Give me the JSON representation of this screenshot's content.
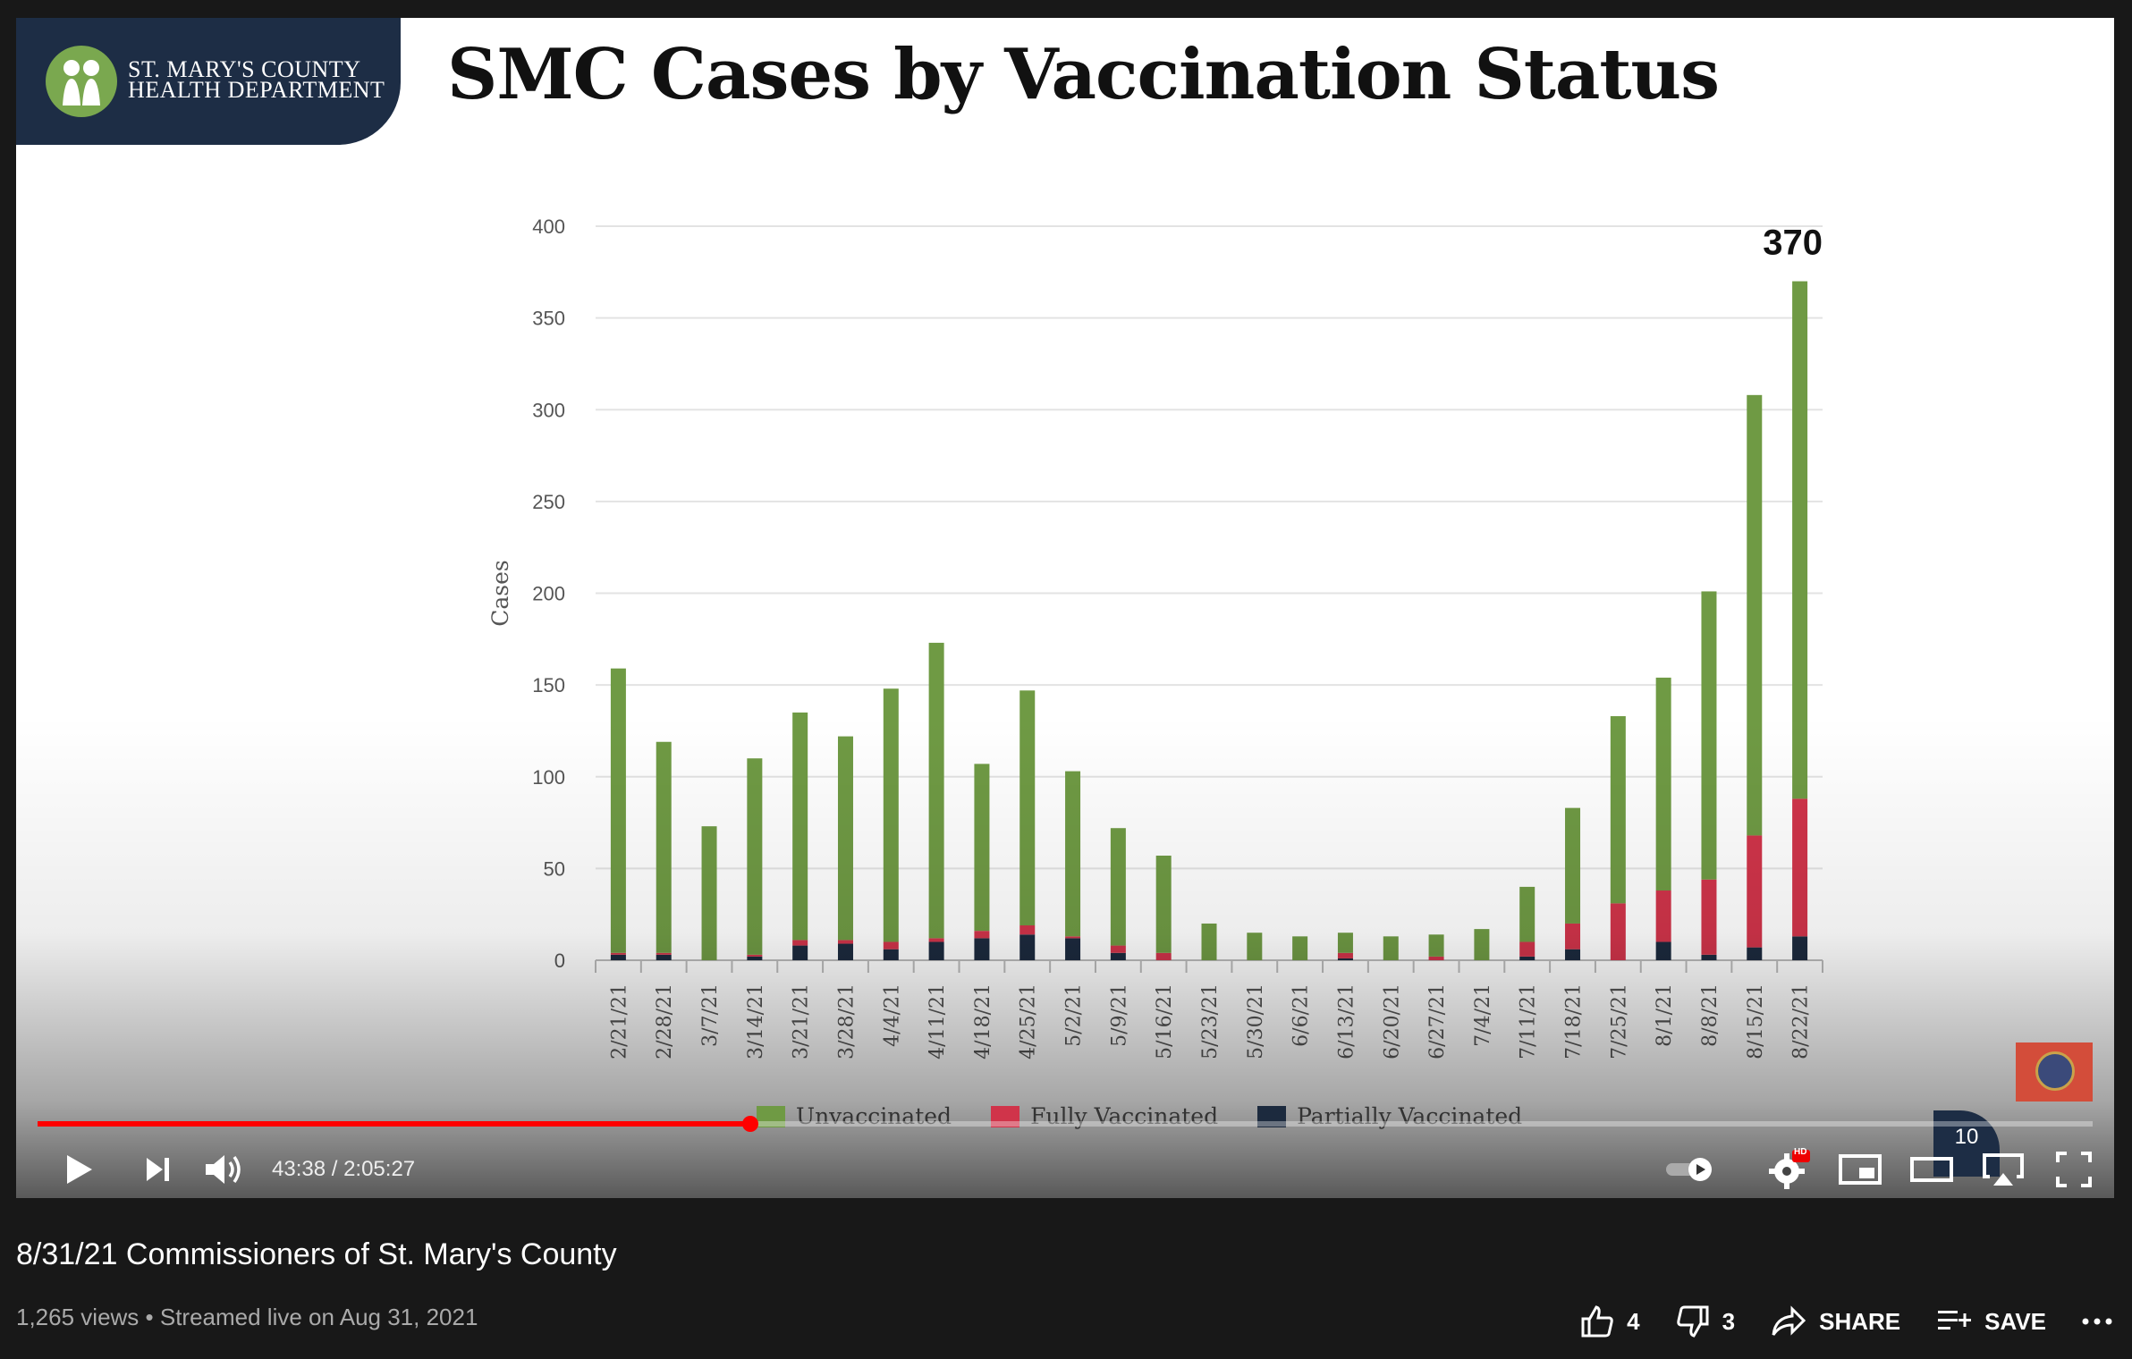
{
  "slide": {
    "org_line1": "ST. MARY'S COUNTY",
    "org_line2": "HEALTH DEPARTMENT",
    "title": "SMC Cases by Vaccination Status",
    "page_number": "10"
  },
  "chart_data": {
    "type": "bar",
    "stacked": true,
    "title": "",
    "xlabel": "",
    "ylabel": "Cases",
    "ylim": [
      0,
      400
    ],
    "yticks": [
      0,
      50,
      100,
      150,
      200,
      250,
      300,
      350,
      400
    ],
    "grid": true,
    "legend_position": "bottom",
    "annotation": "370",
    "categories": [
      "2/21/21",
      "2/28/21",
      "3/7/21",
      "3/14/21",
      "3/21/21",
      "3/28/21",
      "4/4/21",
      "4/11/21",
      "4/18/21",
      "4/25/21",
      "5/2/21",
      "5/9/21",
      "5/16/21",
      "5/23/21",
      "5/30/21",
      "6/6/21",
      "6/13/21",
      "6/20/21",
      "6/27/21",
      "7/4/21",
      "7/11/21",
      "7/18/21",
      "7/25/21",
      "8/1/21",
      "8/8/21",
      "8/15/21",
      "8/22/21"
    ],
    "series": [
      {
        "name": "Partially Vaccinated",
        "color": "#1c2a3e",
        "values": [
          3,
          3,
          0,
          2,
          8,
          9,
          6,
          10,
          12,
          14,
          12,
          4,
          0,
          0,
          0,
          0,
          1,
          0,
          0,
          0,
          2,
          6,
          0,
          10,
          3,
          7,
          13
        ]
      },
      {
        "name": "Fully Vaccinated",
        "color": "#d0344a",
        "values": [
          1,
          1,
          0,
          1,
          3,
          2,
          4,
          2,
          4,
          5,
          1,
          4,
          4,
          0,
          0,
          0,
          3,
          0,
          2,
          0,
          8,
          14,
          31,
          28,
          41,
          61,
          75
        ]
      },
      {
        "name": "Unvaccinated",
        "color": "#6f9a44",
        "values": [
          155,
          115,
          73,
          107,
          124,
          111,
          138,
          161,
          91,
          128,
          90,
          64,
          53,
          20,
          15,
          13,
          11,
          13,
          12,
          17,
          30,
          63,
          102,
          116,
          157,
          240,
          282
        ]
      }
    ]
  },
  "player": {
    "time": "43:38 / 2:05:27",
    "progress": 0.347,
    "hd_badge": "HD"
  },
  "video": {
    "title": "8/31/21 Commissioners of St. Mary's County",
    "meta": "1,265 views • Streamed live on Aug 31, 2021",
    "likes": "4",
    "dislikes": "3",
    "share_label": "SHARE",
    "save_label": "SAVE"
  },
  "colors": {
    "accent": "#ff0000",
    "header_navy": "#1d2d45"
  }
}
